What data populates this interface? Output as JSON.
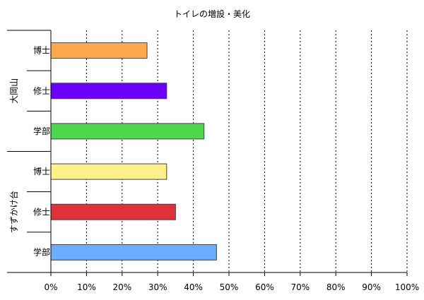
{
  "chart_data": {
    "type": "bar",
    "orientation": "horizontal",
    "title": "トイレの増設・美化",
    "xlim": [
      0,
      100
    ],
    "x_ticks": [
      "0%",
      "10%",
      "20%",
      "30%",
      "40%",
      "50%",
      "60%",
      "70%",
      "80%",
      "90%",
      "100%"
    ],
    "grid": "vertical-dotted",
    "groups": [
      {
        "name": "大岡山",
        "bars": [
          {
            "label": "博士",
            "value": 27,
            "color": "#FFA84C"
          },
          {
            "label": "修士",
            "value": 32.5,
            "color": "#6A00FF"
          },
          {
            "label": "学部",
            "value": 43,
            "color": "#4CD94C"
          }
        ]
      },
      {
        "name": "すずかけ台",
        "bars": [
          {
            "label": "博士",
            "value": 32.5,
            "color": "#FFF08A"
          },
          {
            "label": "修士",
            "value": 35,
            "color": "#E0303A"
          },
          {
            "label": "学部",
            "value": 46.5,
            "color": "#6AAEFF"
          }
        ]
      }
    ]
  }
}
